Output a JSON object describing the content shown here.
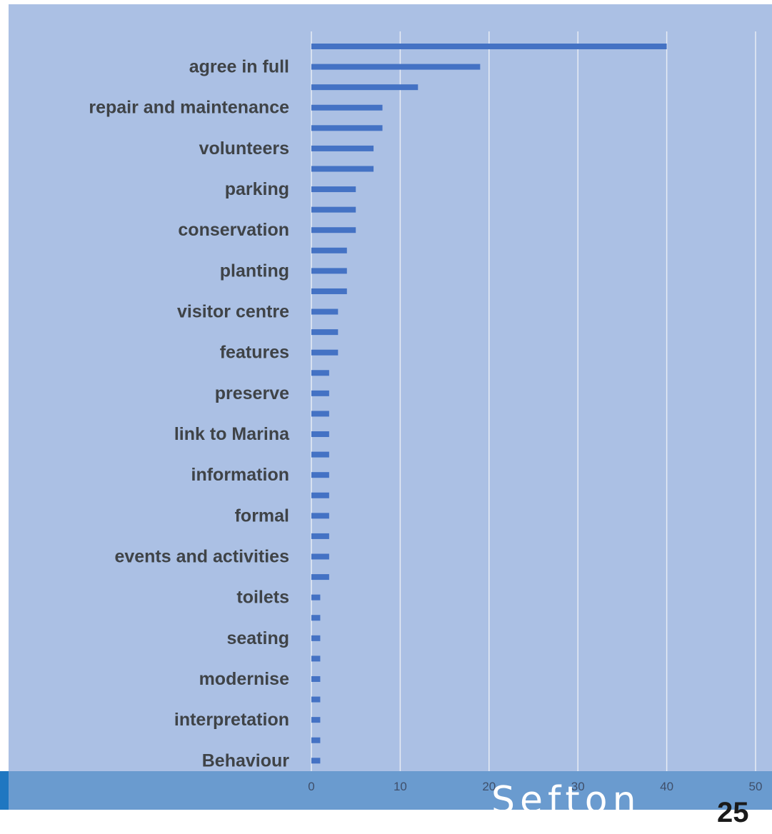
{
  "colors": {
    "panel_background": "#abc0e4",
    "footer_band": "#6a9bcf",
    "footer_accent": "#1f77c1",
    "bar": "#4472c4",
    "gridline": "#e8ecf4"
  },
  "footer": {
    "brand_text": "Sefton",
    "page_number": "25"
  },
  "chart_data": {
    "type": "bar",
    "orientation": "horizontal",
    "grid": true,
    "xlim": [
      0,
      50
    ],
    "x_ticks": [
      "0",
      "10",
      "20",
      "30",
      "40",
      "50"
    ],
    "category_labels_shown": [
      "agree in full",
      "repair and maintenance",
      "volunteers",
      "parking",
      "conservation",
      "planting",
      "visitor centre",
      "features",
      "preserve",
      "link to Marina",
      "information",
      "formal",
      "events and activities",
      "toilets",
      "seating",
      "modernise",
      "interpretation",
      "Behaviour"
    ],
    "values": [
      40,
      19,
      12,
      8,
      8,
      7,
      7,
      5,
      5,
      5,
      4,
      4,
      4,
      3,
      3,
      3,
      2,
      2,
      2,
      2,
      2,
      2,
      2,
      2,
      2,
      2,
      2,
      1,
      1,
      1,
      1,
      1,
      1,
      1,
      1,
      1
    ],
    "labeled_bar_indices": [
      1,
      3,
      5,
      7,
      9,
      11,
      13,
      15,
      17,
      19,
      21,
      23,
      25,
      27,
      29,
      31,
      33,
      35
    ]
  }
}
